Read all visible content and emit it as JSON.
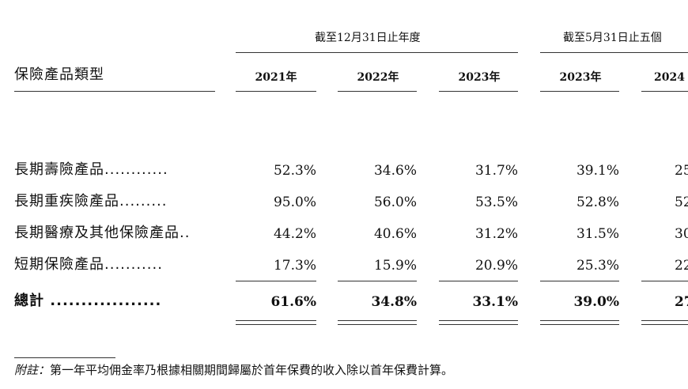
{
  "header": {
    "group_headers": [
      "截至12月31日止年度",
      "截至5月31日止五個"
    ],
    "category_label": "保險產品類型",
    "years": [
      "2021年",
      "2022年",
      "2023年",
      "2023年",
      "2024"
    ]
  },
  "rows": [
    {
      "label": "長期壽險產品............",
      "values": [
        "52.3%",
        "34.6%",
        "31.7%",
        "39.1%",
        "25"
      ]
    },
    {
      "label": "長期重疾險產品.........",
      "values": [
        "95.0%",
        "56.0%",
        "53.5%",
        "52.8%",
        "52"
      ]
    },
    {
      "label": "長期醫療及其他保險產品..",
      "values": [
        "44.2%",
        "40.6%",
        "31.2%",
        "31.5%",
        "30"
      ]
    },
    {
      "label": "短期保險產品...........",
      "values": [
        "17.3%",
        "15.9%",
        "20.9%",
        "25.3%",
        "22"
      ]
    }
  ],
  "total": {
    "label": "總計 ..................",
    "values": [
      "61.6%",
      "34.8%",
      "33.1%",
      "39.0%",
      "27"
    ]
  },
  "note": {
    "prefix": "附註：",
    "text": "第一年平均佣金率乃根據相關期間歸屬於首年保費的收入除以首年保費計算。"
  }
}
